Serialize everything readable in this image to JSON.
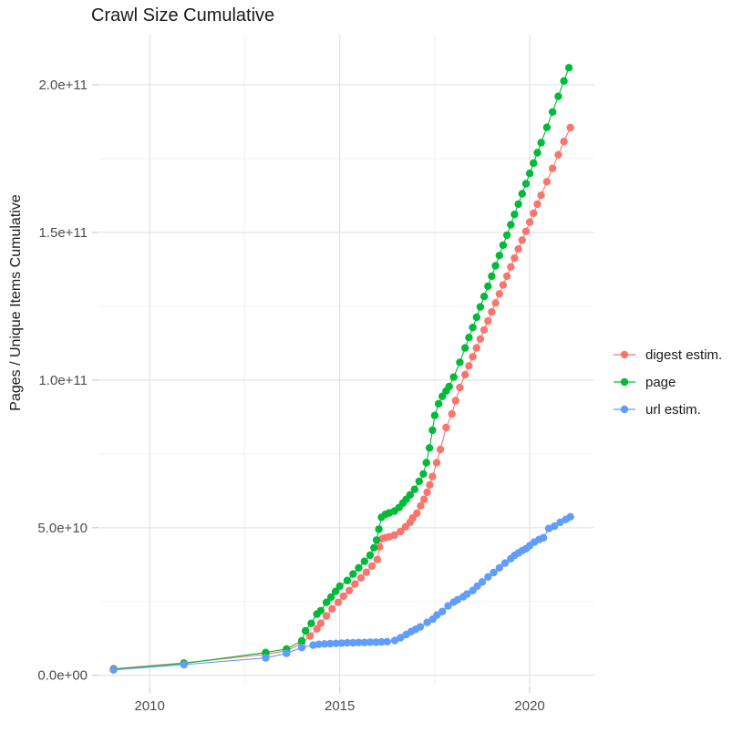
{
  "chart_data": {
    "type": "scatter",
    "title": "Crawl Size Cumulative",
    "xlabel": "",
    "ylabel": "Pages / Unique Items Cumulative",
    "grid": "on",
    "value_scale": 1000000000.0,
    "x_axis": {
      "domain": [
        2008.7,
        2021.7
      ],
      "ticks": [
        {
          "v": 2010,
          "label": "2010"
        },
        {
          "v": 2015,
          "label": "2015"
        },
        {
          "v": 2020,
          "label": "2020"
        }
      ],
      "minor": [
        2012.5,
        2017.5
      ]
    },
    "y_axis": {
      "domain": [
        -3.5,
        217
      ],
      "ticks": [
        {
          "v": 0,
          "label": "0.0e+00"
        },
        {
          "v": 50,
          "label": "5.0e+10"
        },
        {
          "v": 100,
          "label": "1.0e+11"
        },
        {
          "v": 150,
          "label": "1.5e+11"
        },
        {
          "v": 200,
          "label": "2.0e+11"
        }
      ],
      "minor": [
        25,
        75,
        125,
        175
      ]
    },
    "legend": {
      "position": "right",
      "items": [
        {
          "label": "digest estim.",
          "color": "#F8766D"
        },
        {
          "label": "page",
          "color": "#00BA38"
        },
        {
          "label": "url estim.",
          "color": "#619CFF"
        }
      ]
    },
    "series": [
      {
        "name": "digest estim.",
        "color": "#F8766D",
        "points": [
          [
            2009.05,
            2.2
          ],
          [
            2010.9,
            4.2
          ],
          [
            2013.05,
            7.1
          ],
          [
            2013.6,
            8.3
          ],
          [
            2014.0,
            10.8
          ],
          [
            2014.22,
            13.3
          ],
          [
            2014.4,
            15.7
          ],
          [
            2014.5,
            17.6
          ],
          [
            2014.65,
            20.1
          ],
          [
            2014.8,
            22.5
          ],
          [
            2014.96,
            24.7
          ],
          [
            2015.1,
            26.8
          ],
          [
            2015.25,
            28.7
          ],
          [
            2015.4,
            30.9
          ],
          [
            2015.56,
            33.0
          ],
          [
            2015.7,
            34.9
          ],
          [
            2015.85,
            37.0
          ],
          [
            2015.99,
            39.2
          ],
          [
            2016.05,
            43.5
          ],
          [
            2016.12,
            46.3
          ],
          [
            2016.2,
            46.6
          ],
          [
            2016.3,
            46.9
          ],
          [
            2016.44,
            47.5
          ],
          [
            2016.6,
            48.7
          ],
          [
            2016.73,
            50.3
          ],
          [
            2016.85,
            51.8
          ],
          [
            2016.92,
            53.3
          ],
          [
            2017.03,
            54.9
          ],
          [
            2017.13,
            57.4
          ],
          [
            2017.22,
            59.6
          ],
          [
            2017.3,
            62.0
          ],
          [
            2017.37,
            64.5
          ],
          [
            2017.44,
            67.3
          ],
          [
            2017.55,
            72.0
          ],
          [
            2017.65,
            76.5
          ],
          [
            2017.8,
            83.9
          ],
          [
            2017.95,
            88.5
          ],
          [
            2018.05,
            93.0
          ],
          [
            2018.16,
            97.5
          ],
          [
            2018.3,
            101.8
          ],
          [
            2018.4,
            104.8
          ],
          [
            2018.5,
            107.9
          ],
          [
            2018.6,
            110.9
          ],
          [
            2018.7,
            113.9
          ],
          [
            2018.8,
            117.0
          ],
          [
            2018.9,
            120.0
          ],
          [
            2019.0,
            123.1
          ],
          [
            2019.1,
            126.1
          ],
          [
            2019.2,
            129.2
          ],
          [
            2019.3,
            132.2
          ],
          [
            2019.4,
            135.2
          ],
          [
            2019.5,
            138.3
          ],
          [
            2019.6,
            141.3
          ],
          [
            2019.7,
            144.4
          ],
          [
            2019.8,
            147.4
          ],
          [
            2019.9,
            150.4
          ],
          [
            2020.0,
            153.5
          ],
          [
            2020.1,
            156.5
          ],
          [
            2020.2,
            159.6
          ],
          [
            2020.3,
            162.6
          ],
          [
            2020.45,
            167.2
          ],
          [
            2020.6,
            171.7
          ],
          [
            2020.75,
            176.3
          ],
          [
            2020.9,
            180.8
          ],
          [
            2021.07,
            185.5
          ]
        ]
      },
      {
        "name": "page",
        "color": "#00BA38",
        "points": [
          [
            2009.05,
            2.0
          ],
          [
            2010.9,
            4.0
          ],
          [
            2013.05,
            7.7
          ],
          [
            2013.6,
            8.9
          ],
          [
            2014.0,
            11.7
          ],
          [
            2014.1,
            15.1
          ],
          [
            2014.25,
            17.6
          ],
          [
            2014.4,
            20.7
          ],
          [
            2014.5,
            21.9
          ],
          [
            2014.65,
            24.7
          ],
          [
            2014.77,
            26.5
          ],
          [
            2014.89,
            28.4
          ],
          [
            2015.0,
            30.2
          ],
          [
            2015.2,
            32.1
          ],
          [
            2015.35,
            34.3
          ],
          [
            2015.5,
            36.4
          ],
          [
            2015.65,
            38.6
          ],
          [
            2015.8,
            40.7
          ],
          [
            2015.9,
            43.2
          ],
          [
            2015.97,
            45.8
          ],
          [
            2016.03,
            49.5
          ],
          [
            2016.1,
            53.5
          ],
          [
            2016.2,
            54.5
          ],
          [
            2016.3,
            55.0
          ],
          [
            2016.44,
            55.6
          ],
          [
            2016.56,
            56.8
          ],
          [
            2016.66,
            58.3
          ],
          [
            2016.75,
            59.6
          ],
          [
            2016.85,
            61.1
          ],
          [
            2016.97,
            63.0
          ],
          [
            2017.09,
            65.7
          ],
          [
            2017.2,
            68.2
          ],
          [
            2017.28,
            72.0
          ],
          [
            2017.36,
            77.0
          ],
          [
            2017.44,
            83.0
          ],
          [
            2017.5,
            88.0
          ],
          [
            2017.6,
            92.0
          ],
          [
            2017.7,
            94.5
          ],
          [
            2017.8,
            96.3
          ],
          [
            2017.88,
            97.8
          ],
          [
            2018.0,
            101.0
          ],
          [
            2018.16,
            106.0
          ],
          [
            2018.3,
            110.9
          ],
          [
            2018.4,
            114.4
          ],
          [
            2018.5,
            117.8
          ],
          [
            2018.6,
            121.3
          ],
          [
            2018.7,
            124.8
          ],
          [
            2018.8,
            128.3
          ],
          [
            2018.9,
            131.8
          ],
          [
            2019.0,
            135.2
          ],
          [
            2019.1,
            138.7
          ],
          [
            2019.2,
            142.2
          ],
          [
            2019.3,
            145.7
          ],
          [
            2019.4,
            149.1
          ],
          [
            2019.5,
            152.6
          ],
          [
            2019.6,
            156.1
          ],
          [
            2019.7,
            159.6
          ],
          [
            2019.8,
            163.1
          ],
          [
            2019.9,
            166.5
          ],
          [
            2020.0,
            170.0
          ],
          [
            2020.1,
            173.5
          ],
          [
            2020.2,
            177.0
          ],
          [
            2020.3,
            180.4
          ],
          [
            2020.45,
            185.6
          ],
          [
            2020.6,
            190.8
          ],
          [
            2020.75,
            196.1
          ],
          [
            2020.9,
            201.3
          ],
          [
            2021.03,
            205.8
          ]
        ]
      },
      {
        "name": "url estim.",
        "color": "#619CFF",
        "points": [
          [
            2009.05,
            1.8
          ],
          [
            2010.9,
            3.6
          ],
          [
            2013.05,
            5.9
          ],
          [
            2013.6,
            7.4
          ],
          [
            2014.0,
            9.4
          ],
          [
            2014.3,
            10.2
          ],
          [
            2014.45,
            10.5
          ],
          [
            2014.6,
            10.6
          ],
          [
            2014.75,
            10.7
          ],
          [
            2014.9,
            10.8
          ],
          [
            2015.05,
            10.9
          ],
          [
            2015.2,
            11.0
          ],
          [
            2015.35,
            11.0
          ],
          [
            2015.5,
            11.1
          ],
          [
            2015.65,
            11.1
          ],
          [
            2015.8,
            11.2
          ],
          [
            2015.95,
            11.2
          ],
          [
            2016.1,
            11.3
          ],
          [
            2016.25,
            11.4
          ],
          [
            2016.45,
            11.8
          ],
          [
            2016.6,
            12.7
          ],
          [
            2016.75,
            13.8
          ],
          [
            2016.88,
            14.8
          ],
          [
            2017.0,
            15.6
          ],
          [
            2017.12,
            16.4
          ],
          [
            2017.3,
            17.9
          ],
          [
            2017.45,
            19.0
          ],
          [
            2017.56,
            20.4
          ],
          [
            2017.7,
            21.6
          ],
          [
            2017.85,
            23.5
          ],
          [
            2018.0,
            24.8
          ],
          [
            2018.1,
            25.6
          ],
          [
            2018.25,
            26.6
          ],
          [
            2018.35,
            27.5
          ],
          [
            2018.5,
            28.7
          ],
          [
            2018.62,
            30.2
          ],
          [
            2018.75,
            31.6
          ],
          [
            2018.9,
            33.3
          ],
          [
            2019.05,
            34.8
          ],
          [
            2019.2,
            36.4
          ],
          [
            2019.35,
            38.0
          ],
          [
            2019.5,
            39.5
          ],
          [
            2019.6,
            40.6
          ],
          [
            2019.7,
            41.4
          ],
          [
            2019.8,
            42.2
          ],
          [
            2019.9,
            42.9
          ],
          [
            2020.0,
            43.9
          ],
          [
            2020.12,
            45.1
          ],
          [
            2020.25,
            46.0
          ],
          [
            2020.36,
            46.6
          ],
          [
            2020.5,
            49.7
          ],
          [
            2020.65,
            50.5
          ],
          [
            2020.8,
            51.8
          ],
          [
            2020.95,
            52.8
          ],
          [
            2021.07,
            53.7
          ]
        ]
      }
    ]
  }
}
